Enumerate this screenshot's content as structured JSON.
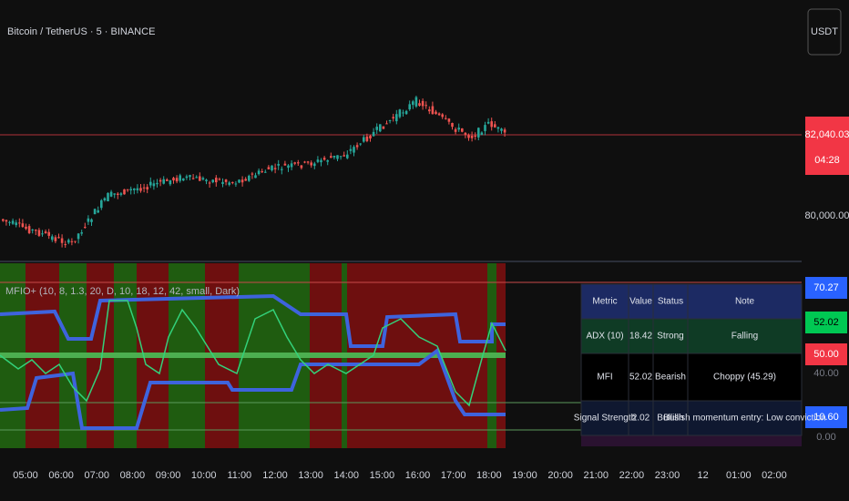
{
  "header": {
    "symbol": "Bitcoin / TetherUS · 5 · BINANCE",
    "currency": "USDT"
  },
  "price_axis": {
    "last_price": "82,040.03",
    "countdown": "04:28",
    "level": "80,000.00"
  },
  "indicator": {
    "title": "MFIO+ (10, 8, 1.3, 20, D, 10, 18, 12, 42, small, Dark)",
    "axis_labels": {
      "upper": "70.27",
      "mfi": "52.02",
      "mid": "50.00",
      "grid_40": "40.00",
      "lower": "10.60",
      "grid_0": "0.00"
    }
  },
  "table": {
    "header": [
      "Metric",
      "Value",
      "Status",
      "Note"
    ],
    "rows": [
      [
        "ADX (10)",
        "18.42",
        "Strong",
        "Falling"
      ],
      [
        "MFI",
        "52.02",
        "Bearish",
        "Choppy (45.29)"
      ],
      [
        "Signal Strength",
        "2.02",
        "Bullish",
        "Bullish momentum entry: Low conviction"
      ]
    ]
  },
  "time_axis": [
    "05:00",
    "06:00",
    "07:00",
    "08:00",
    "09:00",
    "10:00",
    "11:00",
    "12:00",
    "13:00",
    "14:00",
    "15:00",
    "16:00",
    "17:00",
    "18:00",
    "19:00",
    "20:00",
    "21:00",
    "22:00",
    "23:00",
    "12",
    "01:00",
    "02:00"
  ]
}
